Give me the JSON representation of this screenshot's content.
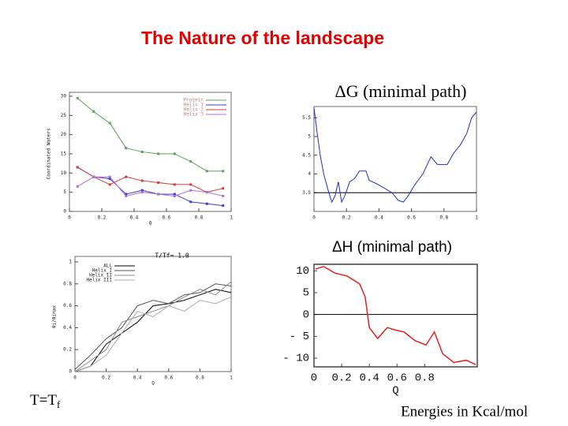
{
  "title": "The Nature of the landscape",
  "footnote_left": {
    "text": "T=T",
    "sub": "f"
  },
  "footnote_right": "Energies in Kcal/mol",
  "chart_data": [
    {
      "type": "line",
      "ylabel": "Coordinated Waters",
      "xlabel": "Q",
      "xlim": [
        0,
        1
      ],
      "xticks": [
        0,
        0.2,
        0.4,
        0.6,
        0.8,
        1
      ],
      "ylim": [
        0,
        30
      ],
      "yticks": [
        0,
        5,
        10,
        15,
        20,
        25,
        30
      ],
      "markers": true,
      "legend": "upper right",
      "x": [
        0.05,
        0.15,
        0.25,
        0.35,
        0.45,
        0.55,
        0.65,
        0.75,
        0.85,
        0.95
      ],
      "series": [
        {
          "name": "Protein",
          "color": "#5aa05a",
          "values": [
            29.5,
            26,
            23,
            16.5,
            15.5,
            15,
            15,
            13,
            10.5,
            10.5
          ]
        },
        {
          "name": "Helix 1",
          "color": "#3a3ad0",
          "values": [
            11.5,
            9,
            8.5,
            4.5,
            5.5,
            4.5,
            4.5,
            2.5,
            2,
            1.5
          ]
        },
        {
          "name": "Helix 2",
          "color": "#d03a3a",
          "values": [
            11.5,
            9,
            7,
            9,
            8,
            7.5,
            7,
            7,
            5,
            6
          ]
        },
        {
          "name": "Helix 3",
          "color": "#b070d0",
          "values": [
            6.5,
            9,
            9,
            4,
            5,
            4.5,
            4,
            5.5,
            5,
            4
          ]
        }
      ]
    },
    {
      "type": "line",
      "title": "ΔG (minimal path)",
      "xlim": [
        0,
        1
      ],
      "xticks": [
        0,
        0.2,
        0.4,
        0.6,
        0.8,
        1
      ],
      "ylim": [
        3,
        5.8
      ],
      "yticks": [
        3.5,
        4,
        4.5,
        5,
        5.5
      ],
      "hline": 3.5,
      "x": [
        0,
        0.02,
        0.04,
        0.06,
        0.09,
        0.11,
        0.13,
        0.15,
        0.17,
        0.19,
        0.22,
        0.25,
        0.28,
        0.32,
        0.34,
        0.38,
        0.43,
        0.48,
        0.52,
        0.55,
        0.58,
        0.62,
        0.67,
        0.72,
        0.76,
        0.82,
        0.86,
        0.9,
        0.94,
        0.97,
        1
      ],
      "series": [
        {
          "color": "#2030c0",
          "values": [
            5.77,
            5.08,
            4.46,
            4.0,
            3.52,
            3.25,
            3.42,
            3.79,
            3.25,
            3.42,
            3.79,
            3.88,
            4.08,
            4.08,
            3.83,
            3.75,
            3.63,
            3.5,
            3.29,
            3.25,
            3.42,
            3.71,
            4.0,
            4.46,
            4.25,
            4.25,
            4.56,
            4.77,
            5.08,
            5.5,
            5.65
          ]
        }
      ]
    },
    {
      "type": "line",
      "title": "T/Tf= 1.0",
      "ylabel": "θi/θimax",
      "xlabel": "Q",
      "xlim": [
        0,
        1
      ],
      "xticks": [
        0,
        0.2,
        0.4,
        0.6,
        0.8,
        1
      ],
      "ylim": [
        0,
        1
      ],
      "yticks": [
        0,
        0.2,
        0.4,
        0.6,
        0.8,
        1
      ],
      "legend": "upper left",
      "x": [
        0,
        0.1,
        0.2,
        0.3,
        0.4,
        0.5,
        0.6,
        0.7,
        0.8,
        0.9,
        1
      ],
      "series": [
        {
          "name": "ALL",
          "color": "#000000",
          "values": [
            0,
            0.05,
            0.25,
            0.35,
            0.45,
            0.6,
            0.62,
            0.65,
            0.7,
            0.75,
            0.72
          ]
        },
        {
          "name": "Helix I",
          "color": "#555555",
          "values": [
            0.02,
            0.15,
            0.3,
            0.4,
            0.6,
            0.65,
            0.62,
            0.7,
            0.72,
            0.8,
            0.78
          ]
        },
        {
          "name": "Helix II",
          "color": "#888888",
          "values": [
            0,
            0.1,
            0.2,
            0.45,
            0.5,
            0.55,
            0.6,
            0.68,
            0.75,
            0.7,
            0.82
          ]
        },
        {
          "name": "Helix III",
          "color": "#aaaaaa",
          "values": [
            0,
            0.05,
            0.15,
            0.35,
            0.55,
            0.5,
            0.6,
            0.55,
            0.65,
            0.62,
            0.68
          ]
        }
      ]
    },
    {
      "type": "line",
      "title": "ΔH (minimal path)",
      "xlabel": "Q",
      "xlim": [
        0,
        1.18
      ],
      "xticks": [
        0,
        0.2,
        0.4,
        0.6,
        0.8
      ],
      "ylim": [
        -12,
        11.5
      ],
      "yticks": [
        10,
        5,
        0,
        {
          "value": -5,
          "label": "- 5"
        },
        {
          "value": -10,
          "label": "- 10"
        }
      ],
      "hline": 0,
      "x": [
        0.01,
        0.07,
        0.15,
        0.24,
        0.33,
        0.37,
        0.4,
        0.46,
        0.53,
        0.58,
        0.65,
        0.73,
        0.81,
        0.87,
        0.93,
        1.01,
        1.1,
        1.17
      ],
      "series": [
        {
          "color": "#e02020",
          "values": [
            10.4,
            11,
            9.5,
            8.8,
            7,
            4,
            -3,
            -5.5,
            -3,
            -3.5,
            -4,
            -6,
            -7,
            -4,
            -9,
            -11,
            -10.5,
            -11.5
          ]
        }
      ]
    }
  ]
}
